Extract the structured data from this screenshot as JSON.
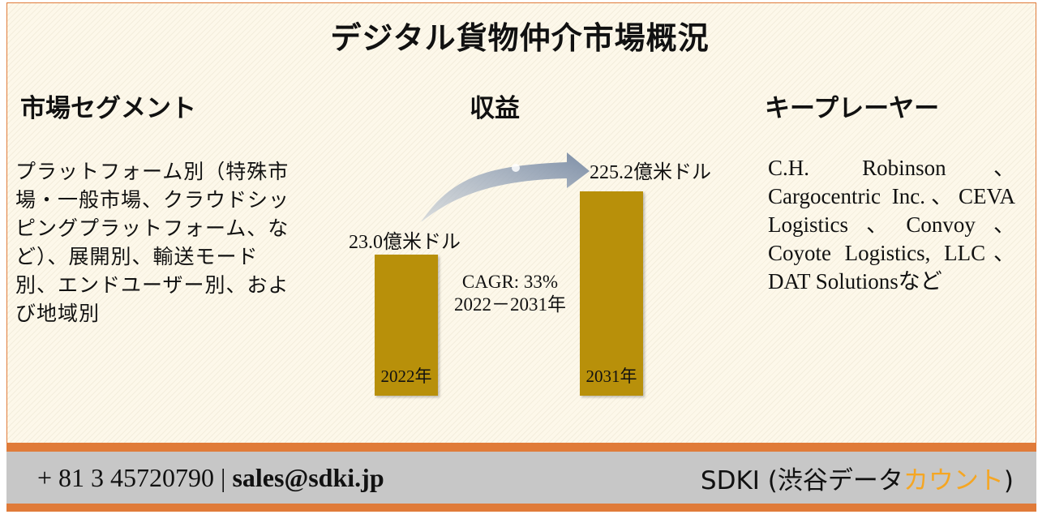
{
  "title": "デジタル貨物仲介市場概況",
  "segments": {
    "heading": "市場セグメント",
    "text": "プラットフォーム別（特殊市場・一般市場、クラウドシッピングプラットフォーム、など）、展開別、輸送モード別、エンドユーザー別、および地域別"
  },
  "revenue": {
    "heading": "収益",
    "cagr_line1": "CAGR: 33%",
    "cagr_line2": "2022－2031年"
  },
  "players": {
    "heading": "キープレーヤー",
    "text": "C.H. Robinson、Cargocentric Inc.、CEVA Logistics、Convoy、Coyote Logistics, LLC、DAT Solutionsなど"
  },
  "chart_data": {
    "type": "bar",
    "categories": [
      "2022年",
      "2031年"
    ],
    "values": [
      23.0,
      225.2
    ],
    "value_labels": [
      "23.0億米ドル",
      "225.2億米ドル"
    ],
    "unit": "億米ドル",
    "annotation": "CAGR: 33% 2022－2031年",
    "colors": {
      "bar": "#b8900a",
      "arrow": "#8797ad"
    }
  },
  "footer": {
    "phone": "+ 81 3 45720790",
    "separator": "|",
    "email": "sales@sdki.jp",
    "brand_main": "SDKI (渋谷データ",
    "brand_accent": "カウント",
    "brand_close": ")"
  },
  "colors": {
    "border": "#e07b39",
    "footer_bg": "#c7c7c7",
    "accent": "#f5a623"
  }
}
